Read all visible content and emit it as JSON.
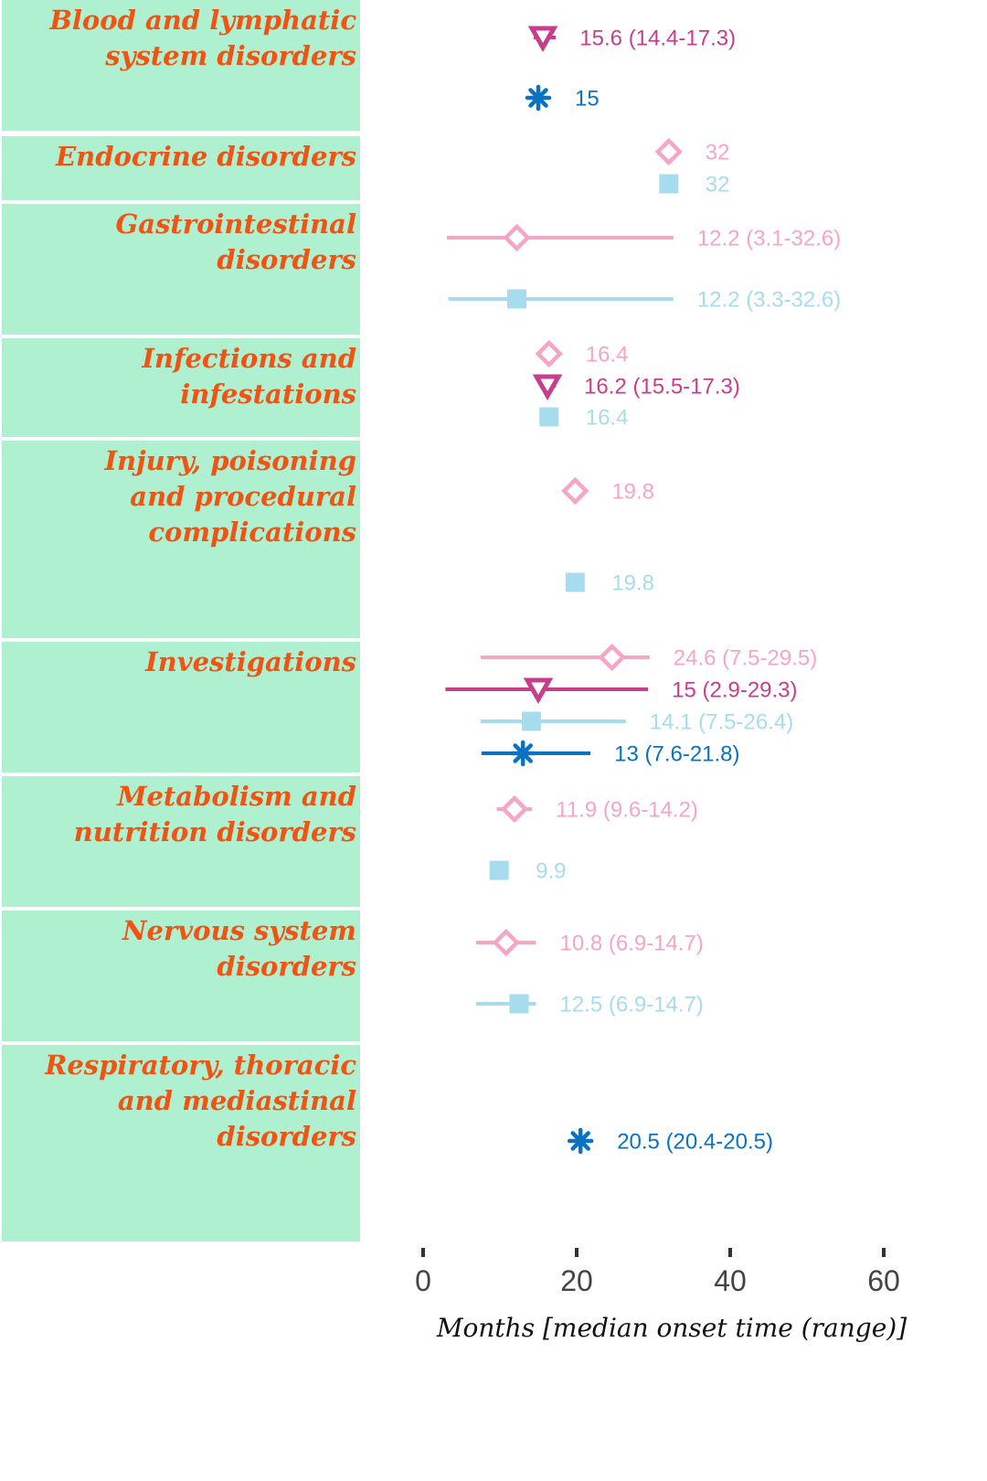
{
  "colors": {
    "panel": "#aef0d0",
    "category_text": "#f05312",
    "pink_light": "#f4a6c4",
    "magenta": "#c73e8c",
    "light_blue": "#a6dcee",
    "blue": "#0a72c0"
  },
  "chart_data": {
    "type": "forest",
    "xlabel": "Months [median onset time (range)]",
    "xlim": [
      0,
      60
    ],
    "xticks": [
      0,
      20,
      40,
      60
    ],
    "series": [
      {
        "marker": "diamond-open",
        "color": "#f4a6c4"
      },
      {
        "marker": "triangle-down",
        "color": "#c73e8c"
      },
      {
        "marker": "square",
        "color": "#a6dcee"
      },
      {
        "marker": "asterisk",
        "color": "#0a72c0"
      }
    ],
    "categories": [
      {
        "label": "Blood and lymphatic system disorders",
        "lines": [
          "Blood and lymphatic",
          "system disorders"
        ],
        "points": [
          {
            "series": 1,
            "median": 15.6,
            "low": 14.4,
            "high": 17.3,
            "label": "15.6 (14.4-17.3)"
          },
          {
            "series": 3,
            "median": 15,
            "low": null,
            "high": null,
            "label": "15"
          }
        ]
      },
      {
        "label": "Endocrine disorders",
        "lines": [
          "Endocrine disorders"
        ],
        "points": [
          {
            "series": 0,
            "median": 32,
            "low": null,
            "high": null,
            "label": "32"
          },
          {
            "series": 2,
            "median": 32,
            "low": null,
            "high": null,
            "label": "32"
          }
        ]
      },
      {
        "label": "Gastrointestinal disorders",
        "lines": [
          "Gastrointestinal",
          "disorders"
        ],
        "points": [
          {
            "series": 0,
            "median": 12.2,
            "low": 3.1,
            "high": 32.6,
            "label": "12.2 (3.1-32.6)"
          },
          {
            "series": 2,
            "median": 12.2,
            "low": 3.3,
            "high": 32.6,
            "label": "12.2 (3.3-32.6)"
          }
        ]
      },
      {
        "label": "Infections and infestations",
        "lines": [
          "Infections and",
          "infestations"
        ],
        "points": [
          {
            "series": 0,
            "median": 16.4,
            "low": null,
            "high": null,
            "label": "16.4"
          },
          {
            "series": 1,
            "median": 16.2,
            "low": 15.5,
            "high": 17.3,
            "label": "16.2 (15.5-17.3)"
          },
          {
            "series": 2,
            "median": 16.4,
            "low": null,
            "high": null,
            "label": "16.4"
          }
        ]
      },
      {
        "label": "Injury, poisoning and procedural complications",
        "lines": [
          "Injury, poisoning",
          "and procedural",
          "complications"
        ],
        "points": [
          {
            "series": 0,
            "median": 19.8,
            "low": null,
            "high": null,
            "label": "19.8"
          },
          {
            "series": 2,
            "median": 19.8,
            "low": null,
            "high": null,
            "label": "19.8"
          }
        ]
      },
      {
        "label": "Investigations",
        "lines": [
          "Investigations"
        ],
        "points": [
          {
            "series": 0,
            "median": 24.6,
            "low": 7.5,
            "high": 29.5,
            "label": "24.6 (7.5-29.5)"
          },
          {
            "series": 1,
            "median": 15,
            "low": 2.9,
            "high": 29.3,
            "label": "15 (2.9-29.3)"
          },
          {
            "series": 2,
            "median": 14.1,
            "low": 7.5,
            "high": 26.4,
            "label": "14.1 (7.5-26.4)"
          },
          {
            "series": 3,
            "median": 13,
            "low": 7.6,
            "high": 21.8,
            "label": "13 (7.6-21.8)"
          }
        ]
      },
      {
        "label": "Metabolism and nutrition disorders",
        "lines": [
          "Metabolism and",
          "nutrition disorders"
        ],
        "points": [
          {
            "series": 0,
            "median": 11.9,
            "low": 9.6,
            "high": 14.2,
            "label": "11.9 (9.6-14.2)"
          },
          {
            "series": 2,
            "median": 9.9,
            "low": null,
            "high": null,
            "label": "9.9"
          }
        ]
      },
      {
        "label": "Nervous system disorders",
        "lines": [
          "Nervous system",
          "disorders"
        ],
        "points": [
          {
            "series": 0,
            "median": 10.8,
            "low": 6.9,
            "high": 14.7,
            "label": "10.8 (6.9-14.7)"
          },
          {
            "series": 2,
            "median": 12.5,
            "low": 6.9,
            "high": 14.7,
            "label": "12.5 (6.9-14.7)"
          }
        ]
      },
      {
        "label": "Respiratory, thoracic and mediastinal disorders",
        "lines": [
          "Respiratory, thoracic",
          "and mediastinal",
          "disorders"
        ],
        "points": [
          {
            "series": 3,
            "median": 20.5,
            "low": 20.4,
            "high": 20.5,
            "label": "20.5 (20.4-20.5)"
          }
        ]
      }
    ]
  }
}
